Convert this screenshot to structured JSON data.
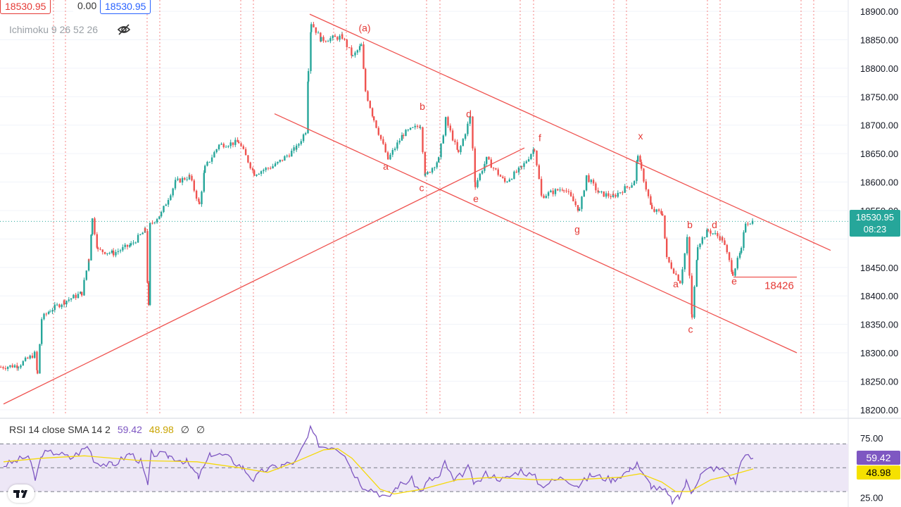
{
  "toolbar": {
    "sell_price": "18530.95",
    "spread": "0.00",
    "buy_price": "18530.95"
  },
  "indicator": {
    "ichimoku_label": "Ichimoku 9 26 52 26"
  },
  "rsi_legend": {
    "name": "RSI 14 close SMA 14 2",
    "rsi_value": "59.42",
    "sma_value": "48.98",
    "extra1": "∅",
    "extra2": "∅"
  },
  "price_tag": {
    "price": "18530.95",
    "countdown": "08:23"
  },
  "rsi_tags": {
    "rsi": "59.42",
    "sma": "48.98"
  },
  "colors": {
    "up": "#26a69a",
    "down": "#ef5350",
    "channel": "#ef5350",
    "rsi_line": "#7e57c2",
    "rsi_sma": "#f5d90a",
    "rsi_band": "#ede7f6",
    "session_lines": "#ef5350"
  },
  "chart_data": {
    "type": "candlestick",
    "price_axis": {
      "range": [
        18180,
        18910
      ],
      "ticks": [
        "18900.00",
        "18850.00",
        "18800.00",
        "18750.00",
        "18700.00",
        "18650.00",
        "18600.00",
        "18550.00",
        "18500.00",
        "18450.00",
        "18400.00",
        "18350.00",
        "18300.00",
        "18250.00",
        "18200.00"
      ]
    },
    "last_price": 18530.95,
    "price_path": [
      [
        0,
        18275
      ],
      [
        25,
        18278
      ],
      [
        48,
        18298
      ],
      [
        52,
        18262
      ],
      [
        58,
        18360
      ],
      [
        70,
        18375
      ],
      [
        90,
        18390
      ],
      [
        115,
        18405
      ],
      [
        125,
        18465
      ],
      [
        130,
        18535
      ],
      [
        138,
        18480
      ],
      [
        160,
        18475
      ],
      [
        185,
        18490
      ],
      [
        205,
        18515
      ],
      [
        210,
        18380
      ],
      [
        212,
        18525
      ],
      [
        228,
        18545
      ],
      [
        248,
        18600
      ],
      [
        268,
        18610
      ],
      [
        282,
        18560
      ],
      [
        290,
        18625
      ],
      [
        310,
        18665
      ],
      [
        338,
        18670
      ],
      [
        360,
        18615
      ],
      [
        390,
        18630
      ],
      [
        420,
        18660
      ],
      [
        433,
        18690
      ],
      [
        437,
        18800
      ],
      [
        441,
        18880
      ],
      [
        455,
        18850
      ],
      [
        485,
        18855
      ],
      [
        500,
        18820
      ],
      [
        512,
        18840
      ],
      [
        518,
        18760
      ],
      [
        530,
        18710
      ],
      [
        550,
        18640
      ],
      [
        572,
        18685
      ],
      [
        596,
        18700
      ],
      [
        603,
        18610
      ],
      [
        622,
        18640
      ],
      [
        632,
        18710
      ],
      [
        650,
        18650
      ],
      [
        667,
        18715
      ],
      [
        674,
        18595
      ],
      [
        690,
        18640
      ],
      [
        716,
        18600
      ],
      [
        740,
        18625
      ],
      [
        758,
        18660
      ],
      [
        768,
        18575
      ],
      [
        800,
        18590
      ],
      [
        822,
        18550
      ],
      [
        832,
        18610
      ],
      [
        850,
        18580
      ],
      [
        870,
        18575
      ],
      [
        900,
        18600
      ],
      [
        905,
        18650
      ],
      [
        910,
        18620
      ],
      [
        925,
        18550
      ],
      [
        940,
        18545
      ],
      [
        946,
        18465
      ],
      [
        965,
        18425
      ],
      [
        975,
        18500
      ],
      [
        982,
        18360
      ],
      [
        990,
        18490
      ],
      [
        1005,
        18515
      ],
      [
        1025,
        18500
      ],
      [
        1040,
        18440
      ],
      [
        1052,
        18480
      ],
      [
        1058,
        18530
      ],
      [
        1070,
        18531
      ]
    ],
    "channel_lines": [
      {
        "name": "upper channel",
        "from": [
          440,
          18895
        ],
        "to": [
          1180,
          18480
        ]
      },
      {
        "name": "lower channel",
        "from": [
          390,
          18720
        ],
        "to": [
          1132,
          18300
        ]
      },
      {
        "name": "support trendline",
        "from": [
          5,
          18210
        ],
        "to": [
          745,
          18660
        ]
      },
      {
        "name": "18426 level",
        "from": [
          1042,
          18433
        ],
        "to": [
          1132,
          18433
        ]
      }
    ],
    "session_lines_x": [
      76,
      93,
      209,
      227,
      342,
      360,
      474,
      492,
      606,
      625,
      739,
      758,
      872,
      890,
      1005,
      1023,
      1138,
      1156
    ],
    "annotations": [
      {
        "text": "(a)",
        "x": 518,
        "price": 18865
      },
      {
        "text": "b",
        "x": 600,
        "price": 18727
      },
      {
        "text": "d",
        "x": 666,
        "price": 18714
      },
      {
        "text": "a",
        "x": 548,
        "price": 18622
      },
      {
        "text": "c",
        "x": 599,
        "price": 18584
      },
      {
        "text": "e",
        "x": 676,
        "price": 18565
      },
      {
        "text": "f",
        "x": 767,
        "price": 18672
      },
      {
        "text": "g",
        "x": 820,
        "price": 18511
      },
      {
        "text": "x",
        "x": 910,
        "price": 18675
      },
      {
        "text": "a",
        "x": 960,
        "price": 18415
      },
      {
        "text": "b",
        "x": 980,
        "price": 18519
      },
      {
        "text": "d",
        "x": 1015,
        "price": 18519
      },
      {
        "text": "e",
        "x": 1043,
        "price": 18420
      },
      {
        "text": "c",
        "x": 981,
        "price": 18335
      },
      {
        "text": "18426",
        "x": 1107,
        "price": 18412
      }
    ],
    "rsi": {
      "axis_ticks": [
        "75.00",
        "25.00"
      ],
      "range": [
        20,
        85
      ],
      "upper": 70,
      "lower": 30,
      "middle": 50,
      "rsi_value": 59.42,
      "sma_value": 48.98,
      "rsi_path": [
        [
          5,
          52
        ],
        [
          20,
          55
        ],
        [
          40,
          60
        ],
        [
          50,
          40
        ],
        [
          60,
          62
        ],
        [
          80,
          63
        ],
        [
          100,
          58
        ],
        [
          125,
          68
        ],
        [
          135,
          55
        ],
        [
          160,
          52
        ],
        [
          185,
          62
        ],
        [
          200,
          55
        ],
        [
          210,
          35
        ],
        [
          215,
          62
        ],
        [
          240,
          60
        ],
        [
          265,
          55
        ],
        [
          282,
          42
        ],
        [
          300,
          62
        ],
        [
          320,
          60
        ],
        [
          345,
          50
        ],
        [
          360,
          40
        ],
        [
          375,
          48
        ],
        [
          400,
          52
        ],
        [
          420,
          55
        ],
        [
          437,
          75
        ],
        [
          441,
          82
        ],
        [
          455,
          68
        ],
        [
          475,
          68
        ],
        [
          490,
          62
        ],
        [
          500,
          48
        ],
        [
          515,
          35
        ],
        [
          535,
          30
        ],
        [
          550,
          24
        ],
        [
          565,
          35
        ],
        [
          585,
          40
        ],
        [
          597,
          30
        ],
        [
          610,
          40
        ],
        [
          625,
          42
        ],
        [
          632,
          55
        ],
        [
          645,
          38
        ],
        [
          665,
          50
        ],
        [
          675,
          35
        ],
        [
          690,
          45
        ],
        [
          716,
          40
        ],
        [
          740,
          48
        ],
        [
          760,
          42
        ],
        [
          768,
          35
        ],
        [
          800,
          42
        ],
        [
          822,
          35
        ],
        [
          840,
          44
        ],
        [
          870,
          40
        ],
        [
          895,
          48
        ],
        [
          905,
          55
        ],
        [
          912,
          45
        ],
        [
          925,
          35
        ],
        [
          945,
          30
        ],
        [
          955,
          22
        ],
        [
          965,
          25
        ],
        [
          975,
          38
        ],
        [
          982,
          30
        ],
        [
          995,
          44
        ],
        [
          1010,
          50
        ],
        [
          1030,
          48
        ],
        [
          1045,
          38
        ],
        [
          1055,
          60
        ],
        [
          1070,
          58
        ]
      ],
      "sma_path": [
        [
          5,
          55
        ],
        [
          60,
          58
        ],
        [
          120,
          60
        ],
        [
          200,
          56
        ],
        [
          280,
          55
        ],
        [
          340,
          50
        ],
        [
          380,
          46
        ],
        [
          420,
          55
        ],
        [
          460,
          65
        ],
        [
          480,
          66
        ],
        [
          500,
          58
        ],
        [
          520,
          45
        ],
        [
          540,
          32
        ],
        [
          560,
          28
        ],
        [
          600,
          32
        ],
        [
          650,
          40
        ],
        [
          700,
          42
        ],
        [
          760,
          40
        ],
        [
          820,
          40
        ],
        [
          880,
          42
        ],
        [
          910,
          45
        ],
        [
          940,
          38
        ],
        [
          960,
          30
        ],
        [
          980,
          30
        ],
        [
          1010,
          40
        ],
        [
          1040,
          44
        ],
        [
          1070,
          49
        ]
      ]
    }
  }
}
